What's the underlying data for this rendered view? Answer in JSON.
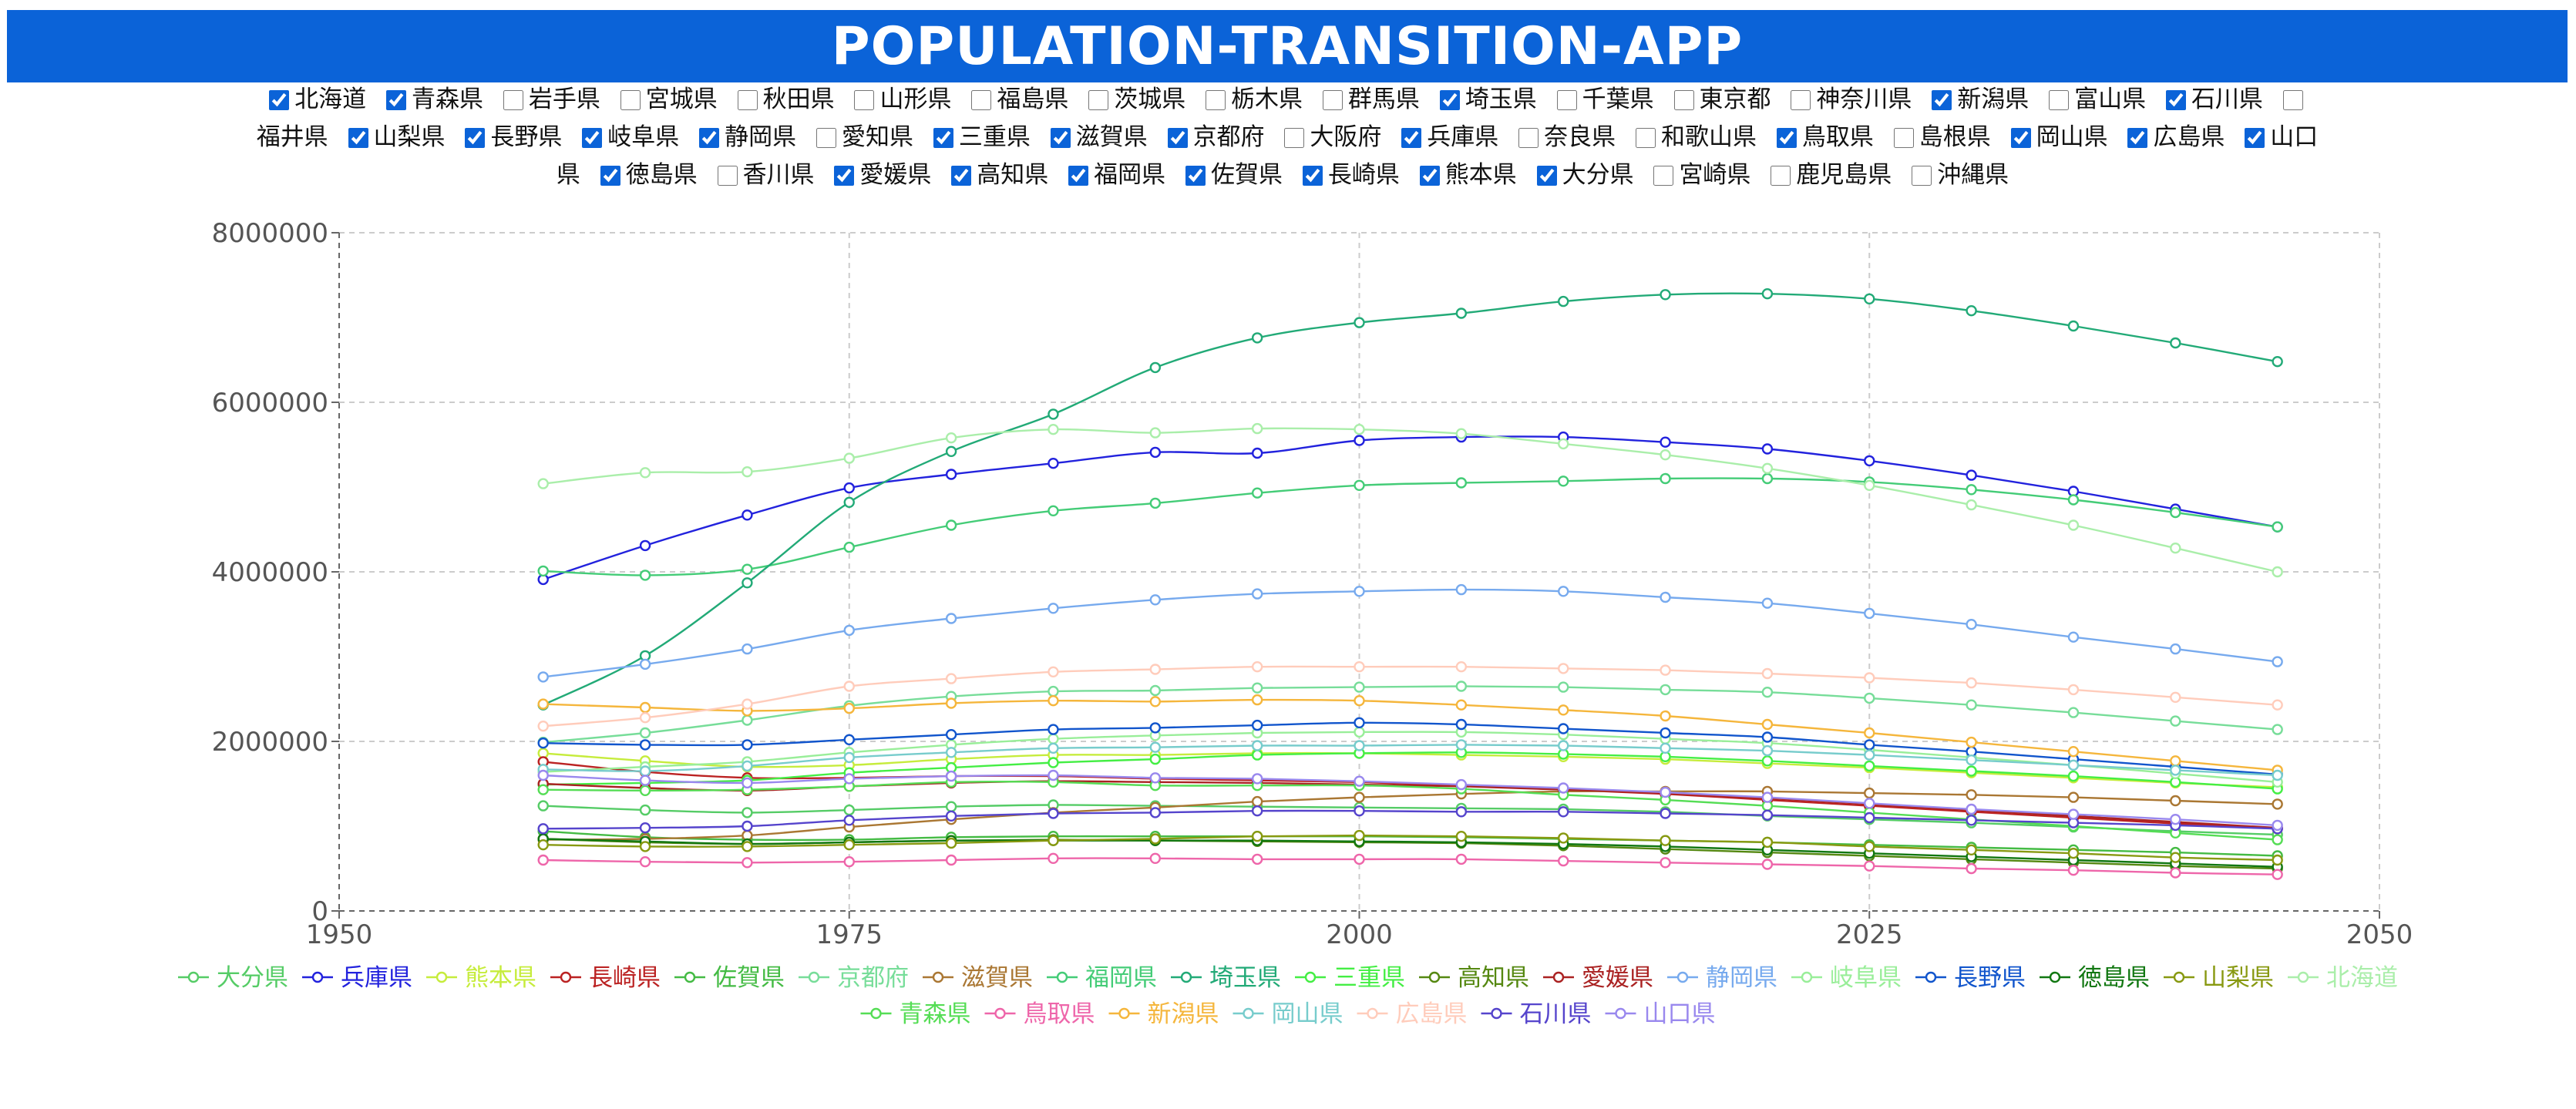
{
  "header": {
    "title": "POPULATION-TRANSITION-APP"
  },
  "prefectures": [
    {
      "name": "北海道",
      "checked": true
    },
    {
      "name": "青森県",
      "checked": true
    },
    {
      "name": "岩手県",
      "checked": false
    },
    {
      "name": "宮城県",
      "checked": false
    },
    {
      "name": "秋田県",
      "checked": false
    },
    {
      "name": "山形県",
      "checked": false
    },
    {
      "name": "福島県",
      "checked": false
    },
    {
      "name": "茨城県",
      "checked": false
    },
    {
      "name": "栃木県",
      "checked": false
    },
    {
      "name": "群馬県",
      "checked": false
    },
    {
      "name": "埼玉県",
      "checked": true
    },
    {
      "name": "千葉県",
      "checked": false
    },
    {
      "name": "東京都",
      "checked": false
    },
    {
      "name": "神奈川県",
      "checked": false
    },
    {
      "name": "新潟県",
      "checked": true
    },
    {
      "name": "富山県",
      "checked": false
    },
    {
      "name": "石川県",
      "checked": true
    },
    {
      "name": "福井県",
      "checked": false
    },
    {
      "name": "山梨県",
      "checked": true
    },
    {
      "name": "長野県",
      "checked": true
    },
    {
      "name": "岐阜県",
      "checked": true
    },
    {
      "name": "静岡県",
      "checked": true
    },
    {
      "name": "愛知県",
      "checked": false
    },
    {
      "name": "三重県",
      "checked": true
    },
    {
      "name": "滋賀県",
      "checked": true
    },
    {
      "name": "京都府",
      "checked": true
    },
    {
      "name": "大阪府",
      "checked": false
    },
    {
      "name": "兵庫県",
      "checked": true
    },
    {
      "name": "奈良県",
      "checked": false
    },
    {
      "name": "和歌山県",
      "checked": false
    },
    {
      "name": "鳥取県",
      "checked": true
    },
    {
      "name": "島根県",
      "checked": false
    },
    {
      "name": "岡山県",
      "checked": true
    },
    {
      "name": "広島県",
      "checked": true
    },
    {
      "name": "山口県",
      "checked": true
    },
    {
      "name": "徳島県",
      "checked": true
    },
    {
      "name": "香川県",
      "checked": false
    },
    {
      "name": "愛媛県",
      "checked": true
    },
    {
      "name": "高知県",
      "checked": true
    },
    {
      "name": "福岡県",
      "checked": true
    },
    {
      "name": "佐賀県",
      "checked": true
    },
    {
      "name": "長崎県",
      "checked": true
    },
    {
      "name": "熊本県",
      "checked": true
    },
    {
      "name": "大分県",
      "checked": true
    },
    {
      "name": "宮崎県",
      "checked": false
    },
    {
      "name": "鹿児島県",
      "checked": false
    },
    {
      "name": "沖縄県",
      "checked": false
    }
  ],
  "chart_data": {
    "type": "line",
    "title": "",
    "xlabel": "",
    "ylabel": "",
    "xlim": [
      1950,
      2050
    ],
    "ylim": [
      0,
      8000000
    ],
    "xticks": [
      1950,
      1975,
      2000,
      2025,
      2050
    ],
    "yticks": [
      0,
      2000000,
      4000000,
      6000000,
      8000000
    ],
    "grid": true,
    "legend_position": "bottom",
    "x": [
      1960,
      1965,
      1970,
      1975,
      1980,
      1985,
      1990,
      1995,
      2000,
      2005,
      2010,
      2015,
      2020,
      2025,
      2030,
      2035,
      2040,
      2045
    ],
    "series": [
      {
        "name": "大分県",
        "color": "#55cc66",
        "values": [
          1240000,
          1190000,
          1160000,
          1190000,
          1230000,
          1250000,
          1240000,
          1230000,
          1220000,
          1210000,
          1200000,
          1170000,
          1120000,
          1080000,
          1040000,
          990000,
          940000,
          900000
        ]
      },
      {
        "name": "兵庫県",
        "color": "#2222dd",
        "values": [
          3910000,
          4310000,
          4670000,
          4990000,
          5150000,
          5280000,
          5410000,
          5400000,
          5550000,
          5590000,
          5590000,
          5530000,
          5450000,
          5310000,
          5140000,
          4950000,
          4740000,
          4530000
        ]
      },
      {
        "name": "熊本県",
        "color": "#c6ec3c",
        "values": [
          1860000,
          1770000,
          1700000,
          1720000,
          1790000,
          1840000,
          1840000,
          1860000,
          1860000,
          1840000,
          1820000,
          1790000,
          1740000,
          1690000,
          1630000,
          1570000,
          1510000,
          1460000
        ]
      },
      {
        "name": "長崎県",
        "color": "#bb2222",
        "values": [
          1760000,
          1640000,
          1570000,
          1570000,
          1590000,
          1590000,
          1560000,
          1540000,
          1520000,
          1480000,
          1430000,
          1380000,
          1310000,
          1240000,
          1170000,
          1100000,
          1030000,
          970000
        ]
      },
      {
        "name": "佐賀県",
        "color": "#44bb44",
        "values": [
          940000,
          870000,
          840000,
          840000,
          870000,
          880000,
          880000,
          880000,
          880000,
          870000,
          850000,
          830000,
          810000,
          780000,
          750000,
          720000,
          690000,
          650000
        ]
      },
      {
        "name": "京都府",
        "color": "#77dd99",
        "values": [
          1990000,
          2100000,
          2250000,
          2420000,
          2530000,
          2590000,
          2600000,
          2630000,
          2640000,
          2650000,
          2640000,
          2610000,
          2580000,
          2510000,
          2430000,
          2340000,
          2240000,
          2140000
        ]
      },
      {
        "name": "滋賀県",
        "color": "#aa7733",
        "values": [
          840000,
          850000,
          890000,
          990000,
          1080000,
          1160000,
          1220000,
          1290000,
          1340000,
          1380000,
          1410000,
          1410000,
          1410000,
          1390000,
          1370000,
          1340000,
          1300000,
          1260000
        ]
      },
      {
        "name": "福岡県",
        "color": "#44cc77",
        "values": [
          4010000,
          3960000,
          4030000,
          4290000,
          4550000,
          4720000,
          4810000,
          4930000,
          5020000,
          5050000,
          5070000,
          5100000,
          5100000,
          5060000,
          4970000,
          4850000,
          4700000,
          4530000
        ]
      },
      {
        "name": "埼玉県",
        "color": "#22aa77",
        "values": [
          2430000,
          3010000,
          3870000,
          4820000,
          5420000,
          5860000,
          6410000,
          6760000,
          6940000,
          7050000,
          7190000,
          7270000,
          7280000,
          7220000,
          7080000,
          6900000,
          6700000,
          6480000
        ]
      },
      {
        "name": "三重県",
        "color": "#44ee44",
        "values": [
          1490000,
          1510000,
          1540000,
          1630000,
          1690000,
          1750000,
          1790000,
          1840000,
          1860000,
          1870000,
          1850000,
          1820000,
          1770000,
          1710000,
          1650000,
          1590000,
          1520000,
          1440000
        ]
      },
      {
        "name": "高知県",
        "color": "#558811",
        "values": [
          850000,
          810000,
          790000,
          810000,
          830000,
          840000,
          830000,
          820000,
          810000,
          800000,
          770000,
          730000,
          690000,
          650000,
          610000,
          570000,
          530000,
          500000
        ]
      },
      {
        "name": "愛媛県",
        "color": "#aa2222",
        "values": [
          1500000,
          1450000,
          1420000,
          1470000,
          1510000,
          1530000,
          1520000,
          1510000,
          1490000,
          1470000,
          1430000,
          1390000,
          1330000,
          1260000,
          1190000,
          1120000,
          1050000,
          980000
        ]
      },
      {
        "name": "静岡県",
        "color": "#77aaee",
        "values": [
          2760000,
          2910000,
          3090000,
          3310000,
          3450000,
          3570000,
          3670000,
          3740000,
          3770000,
          3790000,
          3770000,
          3700000,
          3630000,
          3510000,
          3380000,
          3230000,
          3090000,
          2940000
        ]
      },
      {
        "name": "岐阜県",
        "color": "#99ee99",
        "values": [
          1640000,
          1700000,
          1760000,
          1870000,
          1960000,
          2030000,
          2070000,
          2100000,
          2110000,
          2110000,
          2080000,
          2030000,
          1980000,
          1900000,
          1810000,
          1720000,
          1620000,
          1520000
        ]
      },
      {
        "name": "長野県",
        "color": "#1155cc",
        "values": [
          1980000,
          1960000,
          1960000,
          2020000,
          2080000,
          2140000,
          2160000,
          2190000,
          2220000,
          2200000,
          2150000,
          2100000,
          2050000,
          1960000,
          1880000,
          1790000,
          1700000,
          1610000
        ]
      },
      {
        "name": "徳島県",
        "color": "#117711",
        "values": [
          850000,
          820000,
          790000,
          810000,
          830000,
          830000,
          830000,
          830000,
          820000,
          810000,
          790000,
          760000,
          720000,
          680000,
          640000,
          600000,
          560000,
          520000
        ]
      },
      {
        "name": "山梨県",
        "color": "#889911",
        "values": [
          780000,
          760000,
          760000,
          780000,
          800000,
          830000,
          850000,
          880000,
          890000,
          880000,
          860000,
          830000,
          810000,
          760000,
          720000,
          680000,
          630000,
          600000
        ]
      },
      {
        "name": "北海道",
        "color": "#aaeeaa",
        "values": [
          5040000,
          5170000,
          5180000,
          5340000,
          5580000,
          5680000,
          5640000,
          5690000,
          5680000,
          5630000,
          5510000,
          5380000,
          5220000,
          5020000,
          4790000,
          4550000,
          4280000,
          4000000
        ]
      },
      {
        "name": "青森県",
        "color": "#55dd55",
        "values": [
          1430000,
          1420000,
          1430000,
          1470000,
          1520000,
          1520000,
          1480000,
          1480000,
          1480000,
          1440000,
          1370000,
          1310000,
          1240000,
          1160000,
          1080000,
          1000000,
          920000,
          840000
        ]
      },
      {
        "name": "鳥取県",
        "color": "#ee66aa",
        "values": [
          600000,
          580000,
          570000,
          580000,
          600000,
          620000,
          620000,
          610000,
          610000,
          610000,
          590000,
          570000,
          550000,
          530000,
          500000,
          480000,
          450000,
          430000
        ]
      },
      {
        "name": "新潟県",
        "color": "#f5b63c",
        "values": [
          2440000,
          2400000,
          2360000,
          2390000,
          2450000,
          2480000,
          2470000,
          2490000,
          2480000,
          2430000,
          2370000,
          2300000,
          2200000,
          2100000,
          1990000,
          1880000,
          1770000,
          1660000
        ]
      },
      {
        "name": "岡山県",
        "color": "#77cccc",
        "values": [
          1670000,
          1650000,
          1710000,
          1810000,
          1870000,
          1920000,
          1930000,
          1950000,
          1950000,
          1960000,
          1950000,
          1920000,
          1890000,
          1840000,
          1780000,
          1720000,
          1660000,
          1600000
        ]
      },
      {
        "name": "広島県",
        "color": "#ffccbb",
        "values": [
          2180000,
          2280000,
          2440000,
          2650000,
          2740000,
          2820000,
          2850000,
          2880000,
          2880000,
          2880000,
          2860000,
          2840000,
          2800000,
          2750000,
          2690000,
          2610000,
          2520000,
          2430000
        ]
      },
      {
        "name": "石川県",
        "color": "#5544cc",
        "values": [
          970000,
          980000,
          1000000,
          1070000,
          1120000,
          1150000,
          1160000,
          1180000,
          1180000,
          1170000,
          1170000,
          1150000,
          1130000,
          1100000,
          1070000,
          1040000,
          1010000,
          970000
        ]
      },
      {
        "name": "山口県",
        "color": "#9988ee",
        "values": [
          1600000,
          1540000,
          1510000,
          1560000,
          1590000,
          1600000,
          1570000,
          1560000,
          1530000,
          1490000,
          1450000,
          1400000,
          1340000,
          1270000,
          1200000,
          1140000,
          1080000,
          1010000
        ]
      }
    ]
  }
}
